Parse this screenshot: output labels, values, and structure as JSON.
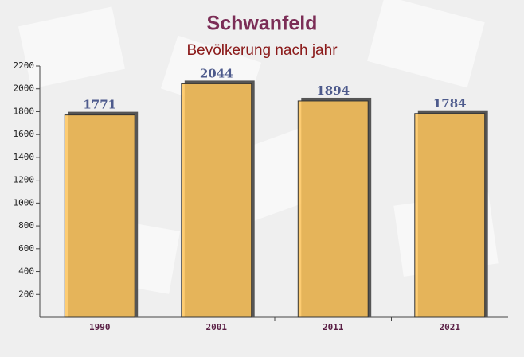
{
  "chart_data": {
    "type": "bar",
    "title": "Schwanfeld",
    "subtitle": "Bevölkerung nach jahr",
    "categories": [
      "1990",
      "2001",
      "2011",
      "2021"
    ],
    "values": [
      1771,
      2044,
      1894,
      1784
    ],
    "color": "#ffc55c",
    "ylim": [
      0,
      2200
    ],
    "yticks": [
      200,
      400,
      600,
      800,
      1000,
      1200,
      1400,
      1600,
      1800,
      2000,
      2200
    ],
    "grid": false
  }
}
